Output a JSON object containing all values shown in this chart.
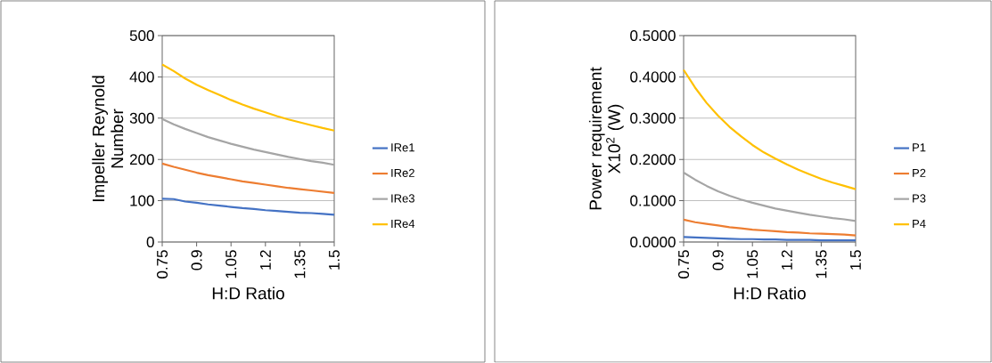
{
  "chart_data": [
    {
      "type": "line",
      "xlabel": "H:D Ratio",
      "ylabel": "Impeller  Reynold Number",
      "x": [
        0.75,
        0.8,
        0.85,
        0.9,
        0.95,
        1.0,
        1.05,
        1.1,
        1.15,
        1.2,
        1.25,
        1.3,
        1.35,
        1.4,
        1.45,
        1.5
      ],
      "xlim": [
        0.75,
        1.5
      ],
      "xticks": [
        0.75,
        0.9,
        1.05,
        1.2,
        1.35,
        1.5
      ],
      "ylim": [
        0,
        500
      ],
      "yticks": [
        0,
        100,
        200,
        300,
        400,
        500
      ],
      "grid": "y",
      "legend": "right",
      "marker": "none",
      "series": [
        {
          "name": "IRe1",
          "color": "#4472c4",
          "values": [
            105,
            104,
            98,
            95,
            91,
            88,
            85,
            82,
            80,
            77,
            75,
            73,
            71,
            70,
            68,
            66
          ]
        },
        {
          "name": "IRe2",
          "color": "#ed7d31",
          "values": [
            190,
            182,
            175,
            168,
            162,
            157,
            152,
            147,
            143,
            139,
            135,
            131,
            128,
            125,
            122,
            119
          ]
        },
        {
          "name": "IRe3",
          "color": "#a5a5a5",
          "values": [
            298,
            285,
            274,
            264,
            254,
            246,
            238,
            231,
            224,
            218,
            212,
            206,
            201,
            196,
            192,
            187
          ]
        },
        {
          "name": "IRe4",
          "color": "#ffc000",
          "values": [
            430,
            414,
            396,
            381,
            368,
            356,
            344,
            333,
            323,
            314,
            305,
            297,
            290,
            283,
            276,
            270
          ]
        }
      ]
    },
    {
      "type": "line",
      "xlabel": "H:D Ratio",
      "ylabel": "Power requirement X10$^{2}$ (W)",
      "x": [
        0.75,
        0.8,
        0.85,
        0.9,
        0.95,
        1.0,
        1.05,
        1.1,
        1.15,
        1.2,
        1.25,
        1.3,
        1.35,
        1.4,
        1.45,
        1.5
      ],
      "xlim": [
        0.75,
        1.5
      ],
      "xticks": [
        0.75,
        0.9,
        1.05,
        1.2,
        1.35,
        1.5
      ],
      "ylim": [
        0,
        0.5
      ],
      "yticks": [
        {
          "value": 0,
          "label": "0.0000"
        },
        {
          "value": 0.1,
          "label": "0.1000"
        },
        {
          "value": 0.2,
          "label": "0.2000"
        },
        {
          "value": 0.3,
          "label": "0.3000"
        },
        {
          "value": 0.4,
          "label": "0.4000"
        },
        {
          "value": 0.5,
          "label": "0.5000"
        }
      ],
      "grid": "y",
      "legend": "right",
      "marker": "none",
      "series": [
        {
          "name": "P1",
          "color": "#4472c4",
          "values": [
            0.012,
            0.011,
            0.01,
            0.009,
            0.008,
            0.007,
            0.007,
            0.006,
            0.006,
            0.005,
            0.005,
            0.005,
            0.004,
            0.004,
            0.004,
            0.004
          ]
        },
        {
          "name": "P2",
          "color": "#ed7d31",
          "values": [
            0.054,
            0.048,
            0.044,
            0.04,
            0.036,
            0.033,
            0.03,
            0.028,
            0.026,
            0.024,
            0.023,
            0.021,
            0.02,
            0.019,
            0.018,
            0.016
          ]
        },
        {
          "name": "P3",
          "color": "#a5a5a5",
          "values": [
            0.168,
            0.151,
            0.136,
            0.123,
            0.112,
            0.103,
            0.095,
            0.088,
            0.081,
            0.076,
            0.071,
            0.066,
            0.062,
            0.058,
            0.055,
            0.051
          ]
        },
        {
          "name": "P4",
          "color": "#ffc000",
          "values": [
            0.417,
            0.374,
            0.337,
            0.306,
            0.279,
            0.256,
            0.235,
            0.217,
            0.202,
            0.188,
            0.175,
            0.164,
            0.153,
            0.144,
            0.136,
            0.128
          ]
        }
      ]
    }
  ]
}
